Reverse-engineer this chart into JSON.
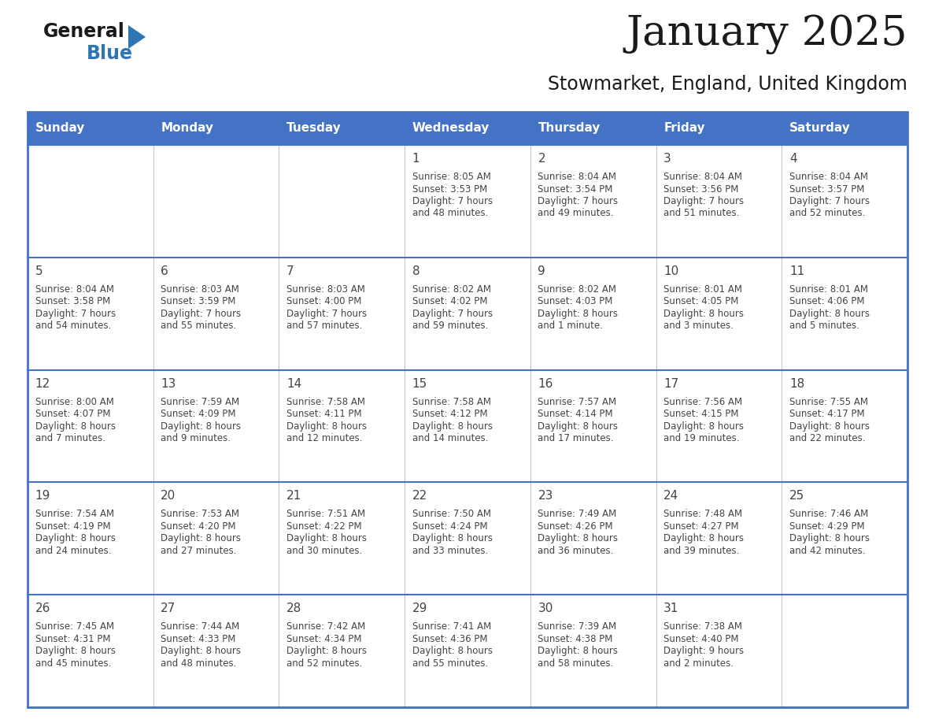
{
  "title": "January 2025",
  "subtitle": "Stowmarket, England, United Kingdom",
  "header_bg": "#4472C4",
  "header_text_color": "#FFFFFF",
  "border_color": "#4472C4",
  "row_separator_color": "#4472C4",
  "col_separator_color": "#C0C0C0",
  "day_names": [
    "Sunday",
    "Monday",
    "Tuesday",
    "Wednesday",
    "Thursday",
    "Friday",
    "Saturday"
  ],
  "text_color": "#444444",
  "day_num_color": "#444444",
  "title_fontsize": 38,
  "subtitle_fontsize": 17,
  "dayname_fontsize": 11,
  "daynum_fontsize": 11,
  "info_fontsize": 8.5,
  "days": [
    {
      "date": 1,
      "col": 3,
      "row": 0,
      "sunrise": "8:05 AM",
      "sunset": "3:53 PM",
      "daylight_line1": "Daylight: 7 hours",
      "daylight_line2": "and 48 minutes."
    },
    {
      "date": 2,
      "col": 4,
      "row": 0,
      "sunrise": "8:04 AM",
      "sunset": "3:54 PM",
      "daylight_line1": "Daylight: 7 hours",
      "daylight_line2": "and 49 minutes."
    },
    {
      "date": 3,
      "col": 5,
      "row": 0,
      "sunrise": "8:04 AM",
      "sunset": "3:56 PM",
      "daylight_line1": "Daylight: 7 hours",
      "daylight_line2": "and 51 minutes."
    },
    {
      "date": 4,
      "col": 6,
      "row": 0,
      "sunrise": "8:04 AM",
      "sunset": "3:57 PM",
      "daylight_line1": "Daylight: 7 hours",
      "daylight_line2": "and 52 minutes."
    },
    {
      "date": 5,
      "col": 0,
      "row": 1,
      "sunrise": "8:04 AM",
      "sunset": "3:58 PM",
      "daylight_line1": "Daylight: 7 hours",
      "daylight_line2": "and 54 minutes."
    },
    {
      "date": 6,
      "col": 1,
      "row": 1,
      "sunrise": "8:03 AM",
      "sunset": "3:59 PM",
      "daylight_line1": "Daylight: 7 hours",
      "daylight_line2": "and 55 minutes."
    },
    {
      "date": 7,
      "col": 2,
      "row": 1,
      "sunrise": "8:03 AM",
      "sunset": "4:00 PM",
      "daylight_line1": "Daylight: 7 hours",
      "daylight_line2": "and 57 minutes."
    },
    {
      "date": 8,
      "col": 3,
      "row": 1,
      "sunrise": "8:02 AM",
      "sunset": "4:02 PM",
      "daylight_line1": "Daylight: 7 hours",
      "daylight_line2": "and 59 minutes."
    },
    {
      "date": 9,
      "col": 4,
      "row": 1,
      "sunrise": "8:02 AM",
      "sunset": "4:03 PM",
      "daylight_line1": "Daylight: 8 hours",
      "daylight_line2": "and 1 minute."
    },
    {
      "date": 10,
      "col": 5,
      "row": 1,
      "sunrise": "8:01 AM",
      "sunset": "4:05 PM",
      "daylight_line1": "Daylight: 8 hours",
      "daylight_line2": "and 3 minutes."
    },
    {
      "date": 11,
      "col": 6,
      "row": 1,
      "sunrise": "8:01 AM",
      "sunset": "4:06 PM",
      "daylight_line1": "Daylight: 8 hours",
      "daylight_line2": "and 5 minutes."
    },
    {
      "date": 12,
      "col": 0,
      "row": 2,
      "sunrise": "8:00 AM",
      "sunset": "4:07 PM",
      "daylight_line1": "Daylight: 8 hours",
      "daylight_line2": "and 7 minutes."
    },
    {
      "date": 13,
      "col": 1,
      "row": 2,
      "sunrise": "7:59 AM",
      "sunset": "4:09 PM",
      "daylight_line1": "Daylight: 8 hours",
      "daylight_line2": "and 9 minutes."
    },
    {
      "date": 14,
      "col": 2,
      "row": 2,
      "sunrise": "7:58 AM",
      "sunset": "4:11 PM",
      "daylight_line1": "Daylight: 8 hours",
      "daylight_line2": "and 12 minutes."
    },
    {
      "date": 15,
      "col": 3,
      "row": 2,
      "sunrise": "7:58 AM",
      "sunset": "4:12 PM",
      "daylight_line1": "Daylight: 8 hours",
      "daylight_line2": "and 14 minutes."
    },
    {
      "date": 16,
      "col": 4,
      "row": 2,
      "sunrise": "7:57 AM",
      "sunset": "4:14 PM",
      "daylight_line1": "Daylight: 8 hours",
      "daylight_line2": "and 17 minutes."
    },
    {
      "date": 17,
      "col": 5,
      "row": 2,
      "sunrise": "7:56 AM",
      "sunset": "4:15 PM",
      "daylight_line1": "Daylight: 8 hours",
      "daylight_line2": "and 19 minutes."
    },
    {
      "date": 18,
      "col": 6,
      "row": 2,
      "sunrise": "7:55 AM",
      "sunset": "4:17 PM",
      "daylight_line1": "Daylight: 8 hours",
      "daylight_line2": "and 22 minutes."
    },
    {
      "date": 19,
      "col": 0,
      "row": 3,
      "sunrise": "7:54 AM",
      "sunset": "4:19 PM",
      "daylight_line1": "Daylight: 8 hours",
      "daylight_line2": "and 24 minutes."
    },
    {
      "date": 20,
      "col": 1,
      "row": 3,
      "sunrise": "7:53 AM",
      "sunset": "4:20 PM",
      "daylight_line1": "Daylight: 8 hours",
      "daylight_line2": "and 27 minutes."
    },
    {
      "date": 21,
      "col": 2,
      "row": 3,
      "sunrise": "7:51 AM",
      "sunset": "4:22 PM",
      "daylight_line1": "Daylight: 8 hours",
      "daylight_line2": "and 30 minutes."
    },
    {
      "date": 22,
      "col": 3,
      "row": 3,
      "sunrise": "7:50 AM",
      "sunset": "4:24 PM",
      "daylight_line1": "Daylight: 8 hours",
      "daylight_line2": "and 33 minutes."
    },
    {
      "date": 23,
      "col": 4,
      "row": 3,
      "sunrise": "7:49 AM",
      "sunset": "4:26 PM",
      "daylight_line1": "Daylight: 8 hours",
      "daylight_line2": "and 36 minutes."
    },
    {
      "date": 24,
      "col": 5,
      "row": 3,
      "sunrise": "7:48 AM",
      "sunset": "4:27 PM",
      "daylight_line1": "Daylight: 8 hours",
      "daylight_line2": "and 39 minutes."
    },
    {
      "date": 25,
      "col": 6,
      "row": 3,
      "sunrise": "7:46 AM",
      "sunset": "4:29 PM",
      "daylight_line1": "Daylight: 8 hours",
      "daylight_line2": "and 42 minutes."
    },
    {
      "date": 26,
      "col": 0,
      "row": 4,
      "sunrise": "7:45 AM",
      "sunset": "4:31 PM",
      "daylight_line1": "Daylight: 8 hours",
      "daylight_line2": "and 45 minutes."
    },
    {
      "date": 27,
      "col": 1,
      "row": 4,
      "sunrise": "7:44 AM",
      "sunset": "4:33 PM",
      "daylight_line1": "Daylight: 8 hours",
      "daylight_line2": "and 48 minutes."
    },
    {
      "date": 28,
      "col": 2,
      "row": 4,
      "sunrise": "7:42 AM",
      "sunset": "4:34 PM",
      "daylight_line1": "Daylight: 8 hours",
      "daylight_line2": "and 52 minutes."
    },
    {
      "date": 29,
      "col": 3,
      "row": 4,
      "sunrise": "7:41 AM",
      "sunset": "4:36 PM",
      "daylight_line1": "Daylight: 8 hours",
      "daylight_line2": "and 55 minutes."
    },
    {
      "date": 30,
      "col": 4,
      "row": 4,
      "sunrise": "7:39 AM",
      "sunset": "4:38 PM",
      "daylight_line1": "Daylight: 8 hours",
      "daylight_line2": "and 58 minutes."
    },
    {
      "date": 31,
      "col": 5,
      "row": 4,
      "sunrise": "7:38 AM",
      "sunset": "4:40 PM",
      "daylight_line1": "Daylight: 9 hours",
      "daylight_line2": "and 2 minutes."
    }
  ]
}
